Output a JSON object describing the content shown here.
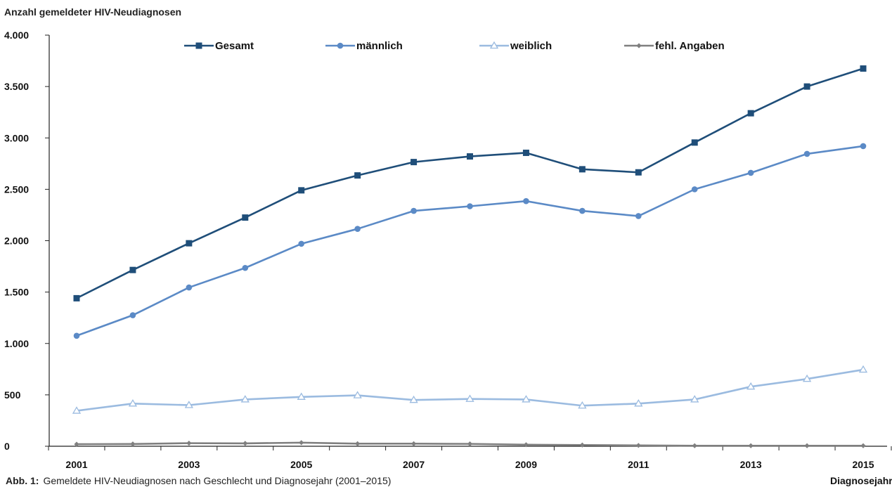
{
  "chart_data": {
    "type": "line",
    "ylabel": "Anzahl gemeldeter HIV-Neudiagnosen",
    "xlabel": "Diagnosejahr",
    "ylim": [
      0,
      4000
    ],
    "yticks": [
      0,
      500,
      1000,
      1500,
      2000,
      2500,
      3000,
      3500,
      4000
    ],
    "ytick_labels": [
      "0",
      "500",
      "1.000",
      "1.500",
      "2.000",
      "2.500",
      "3.000",
      "3.500",
      "4.000"
    ],
    "x": [
      2001,
      2002,
      2003,
      2004,
      2005,
      2006,
      2007,
      2008,
      2009,
      2010,
      2011,
      2012,
      2013,
      2014,
      2015
    ],
    "xtick_labels": [
      "2001",
      "2003",
      "2005",
      "2007",
      "2009",
      "2011",
      "2013",
      "2015"
    ],
    "legend_position": "top",
    "series": [
      {
        "name": "Gesamt",
        "color": "#1f4e79",
        "marker": "square",
        "values": [
          1440,
          1715,
          1975,
          2225,
          2490,
          2635,
          2765,
          2820,
          2855,
          2695,
          2665,
          2955,
          3240,
          3500,
          3675
        ]
      },
      {
        "name": "männlich",
        "color": "#5b8ac6",
        "marker": "circle",
        "values": [
          1075,
          1275,
          1545,
          1735,
          1970,
          2115,
          2290,
          2335,
          2385,
          2290,
          2240,
          2500,
          2660,
          2845,
          2920
        ]
      },
      {
        "name": "weiblich",
        "color": "#9bbbe0",
        "marker": "triangle",
        "values": [
          345,
          415,
          400,
          455,
          480,
          495,
          450,
          460,
          455,
          395,
          415,
          455,
          580,
          655,
          745
        ]
      },
      {
        "name": "fehl. Angaben",
        "color": "#7f7f7f",
        "marker": "diamond",
        "values": [
          20,
          22,
          30,
          28,
          35,
          25,
          25,
          23,
          15,
          12,
          8,
          5,
          5,
          5,
          5
        ]
      }
    ]
  },
  "caption": {
    "label": "Abb. 1:",
    "text": "Gemeldete HIV-Neudiagnosen nach Geschlecht und Diagnosejahr (2001–2015)"
  }
}
